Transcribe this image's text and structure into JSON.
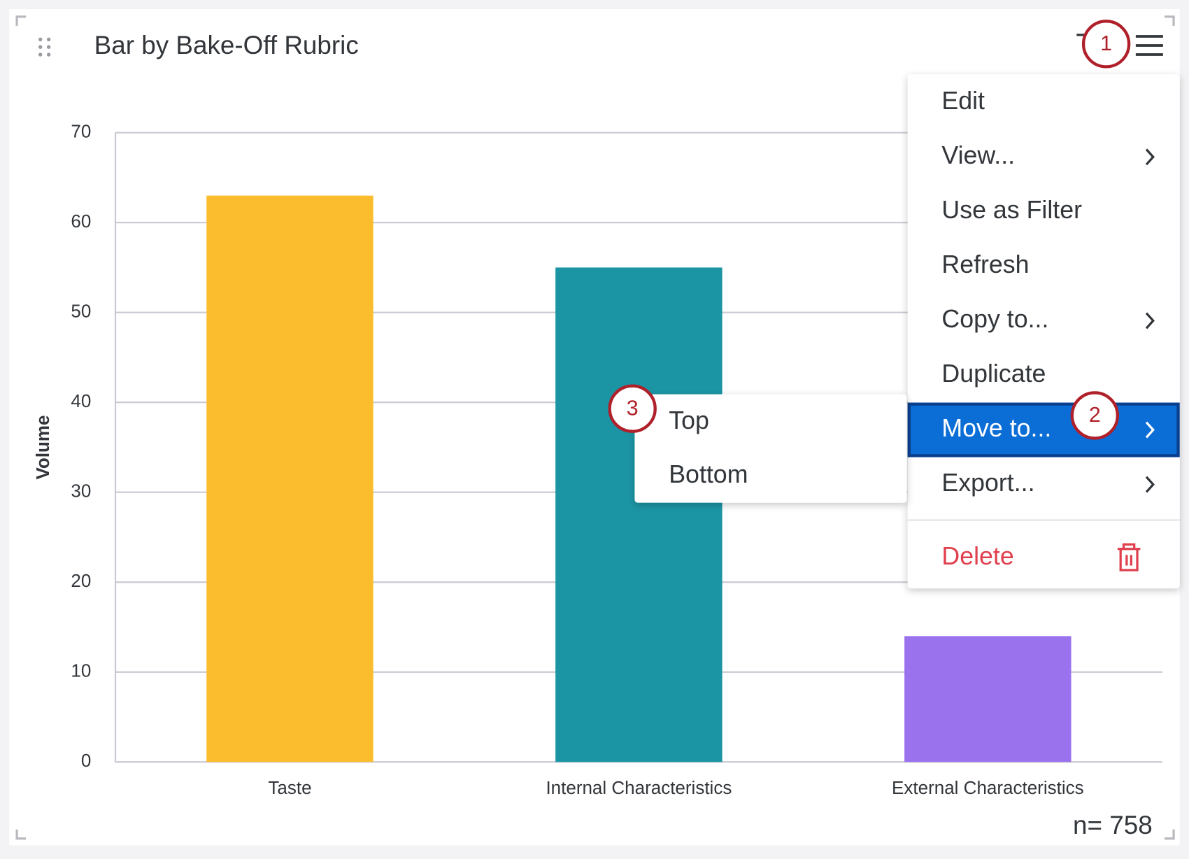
{
  "widget": {
    "title": "Bar by Bake-Off Rubric",
    "footer": "n= 758"
  },
  "chart_data": {
    "type": "bar",
    "y_label": "Volume",
    "categories": [
      "Taste",
      "Internal Characteristics",
      "External Characteristics"
    ],
    "values": [
      63,
      55,
      14
    ],
    "colors": [
      "#fbbd2e",
      "#1b95a4",
      "#9b72ee"
    ],
    "ylim": [
      0,
      70
    ],
    "yticks": [
      0,
      10,
      20,
      30,
      40,
      50,
      60,
      70
    ],
    "grid": true
  },
  "menu": {
    "items": [
      "Edit",
      "View...",
      "Use as Filter",
      "Refresh",
      "Copy to...",
      "Duplicate",
      "Move to...",
      "Export...",
      "Delete"
    ]
  },
  "submenu": {
    "items": [
      "Top",
      "Bottom"
    ]
  },
  "callouts": [
    "1",
    "2",
    "3"
  ]
}
